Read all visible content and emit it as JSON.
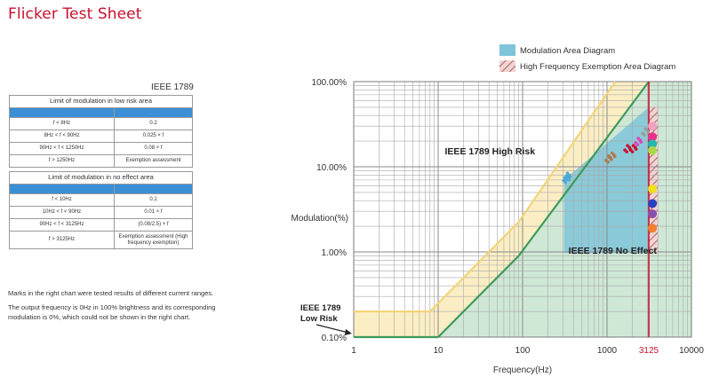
{
  "page": {
    "title": "Flicker Test Sheet"
  },
  "spec": {
    "standard": "IEEE 1789",
    "low_risk": {
      "title": "Limit of modulation in low risk area",
      "headers": [
        "",
        ""
      ],
      "rows": [
        {
          "range": "f < 8Hz",
          "limit": "0.2"
        },
        {
          "range": "8Hz < f < 90Hz",
          "limit": "0.025 × f"
        },
        {
          "range": "90Hz < f < 1250Hz",
          "limit": "0.08 × f"
        },
        {
          "range": "f > 1250Hz",
          "limit": "Exemption assessment"
        }
      ]
    },
    "no_effect": {
      "title": "Limit of modulation in no effect area",
      "headers": [
        "",
        ""
      ],
      "rows": [
        {
          "range": "f < 10Hz",
          "limit": "0.1"
        },
        {
          "range": "10Hz < f < 90Hz",
          "limit": "0.01 × f"
        },
        {
          "range": "90Hz < f < 3125Hz",
          "limit": "(0.08/2.5) × f"
        },
        {
          "range": "f > 3125Hz",
          "limit": "Exemption assessment (High frequency exemption)"
        }
      ]
    }
  },
  "notes": {
    "note1": "Marks in the right chart were tested results of different current ranges.",
    "note2_line1": "The output frequency is 0Hz in 100% brightness and its corresponding",
    "note2_line2": "modulation is 0%, which could not be shown in the right chart."
  },
  "chart_data": {
    "type": "area",
    "title": "",
    "xlabel": "Frequency(Hz)",
    "ylabel": "Modulation(%)",
    "x_scale": "log",
    "y_scale": "log",
    "xlim": [
      1,
      10000
    ],
    "ylim": [
      0.1,
      100
    ],
    "x_ticks": [
      {
        "value": 1,
        "label": "1"
      },
      {
        "value": 10,
        "label": "10"
      },
      {
        "value": 100,
        "label": "100"
      },
      {
        "value": 1000,
        "label": "1000"
      },
      {
        "value": 3125,
        "label": "3125",
        "color": "#c8102e"
      },
      {
        "value": 10000,
        "label": "10000"
      }
    ],
    "y_ticks": [
      {
        "value": 0.1,
        "label": "0.10%"
      },
      {
        "value": 1,
        "label": "1.00%"
      },
      {
        "value": 10,
        "label": "10.00%"
      },
      {
        "value": 100,
        "label": "100.00%"
      }
    ],
    "grid": true,
    "legend_position": "top-right",
    "legend": [
      {
        "label": "Modulation Area Diagram",
        "color": "#7fc4d8"
      },
      {
        "label": "High Frequency Exemption Area Diagram",
        "pattern": "hatch",
        "color": "#d9a8a8"
      }
    ],
    "annotations": [
      {
        "text": "IEEE 1789 High Risk",
        "x": 12,
        "y": 14
      },
      {
        "text": "IEEE 1789 No Effect",
        "x": 350,
        "y": 0.95
      },
      {
        "text": "IEEE 1789",
        "x": 1.7,
        "y": 0.26
      },
      {
        "text": "Low Risk",
        "x": 1.7,
        "y": 0.19
      }
    ],
    "low_risk_boundary": [
      [
        1,
        0.2
      ],
      [
        8,
        0.2
      ],
      [
        90,
        2.25
      ],
      [
        1250,
        100
      ]
    ],
    "no_effect_boundary": [
      [
        1,
        0.1
      ],
      [
        10,
        0.1
      ],
      [
        90,
        0.9
      ],
      [
        3125,
        100
      ]
    ],
    "exemption_frequency": 3125,
    "modulation_area": {
      "x": [
        310,
        3125
      ],
      "y_top_at_x_min": 7,
      "y_top_at_x_max": 50,
      "y_bottom": 0.97
    },
    "exemption_area": {
      "x": [
        3125,
        4000
      ],
      "y": [
        0.97,
        50
      ]
    },
    "series": [
      {
        "marks": [
          {
            "x": 330,
            "y": 7.2
          },
          {
            "x": 340,
            "y": 7.8
          }
        ],
        "color": "#4fa8d8",
        "marker": "cluster"
      },
      {
        "marks": [
          {
            "x": 1050,
            "y": 12.5
          },
          {
            "x": 1150,
            "y": 13.5
          }
        ],
        "color": "#b07a50",
        "marker": "cluster"
      },
      {
        "marks": [
          {
            "x": 1750,
            "y": 16.5
          },
          {
            "x": 2050,
            "y": 16.5
          }
        ],
        "color": "#c8102e",
        "marker": "cluster"
      },
      {
        "marks": [
          {
            "x": 2350,
            "y": 20
          }
        ],
        "color": "#e040c0",
        "marker": "cluster"
      },
      {
        "marks": [
          {
            "x": 2850,
            "y": 26
          }
        ],
        "color": "#9a9a9a",
        "marker": "cluster"
      },
      {
        "marks": [
          {
            "x": 3450,
            "y": 30
          }
        ],
        "color": "#f0a0c0",
        "marker": "dot"
      },
      {
        "marks": [
          {
            "x": 3450,
            "y": 22.5
          }
        ],
        "color": "#e8308a",
        "marker": "dot"
      },
      {
        "marks": [
          {
            "x": 3450,
            "y": 18.5
          }
        ],
        "color": "#22b8b0",
        "marker": "dot"
      },
      {
        "marks": [
          {
            "x": 3450,
            "y": 15.5
          }
        ],
        "color": "#a8d848",
        "marker": "dot"
      },
      {
        "marks": [
          {
            "x": 3450,
            "y": 5.5
          }
        ],
        "color": "#f0e020",
        "marker": "dot"
      },
      {
        "marks": [
          {
            "x": 3450,
            "y": 3.7
          }
        ],
        "color": "#2a40c0",
        "marker": "dot"
      },
      {
        "marks": [
          {
            "x": 3450,
            "y": 2.8
          }
        ],
        "color": "#8a50b0",
        "marker": "dot"
      },
      {
        "marks": [
          {
            "x": 3450,
            "y": 1.9
          }
        ],
        "color": "#f08030",
        "marker": "dot"
      }
    ]
  }
}
